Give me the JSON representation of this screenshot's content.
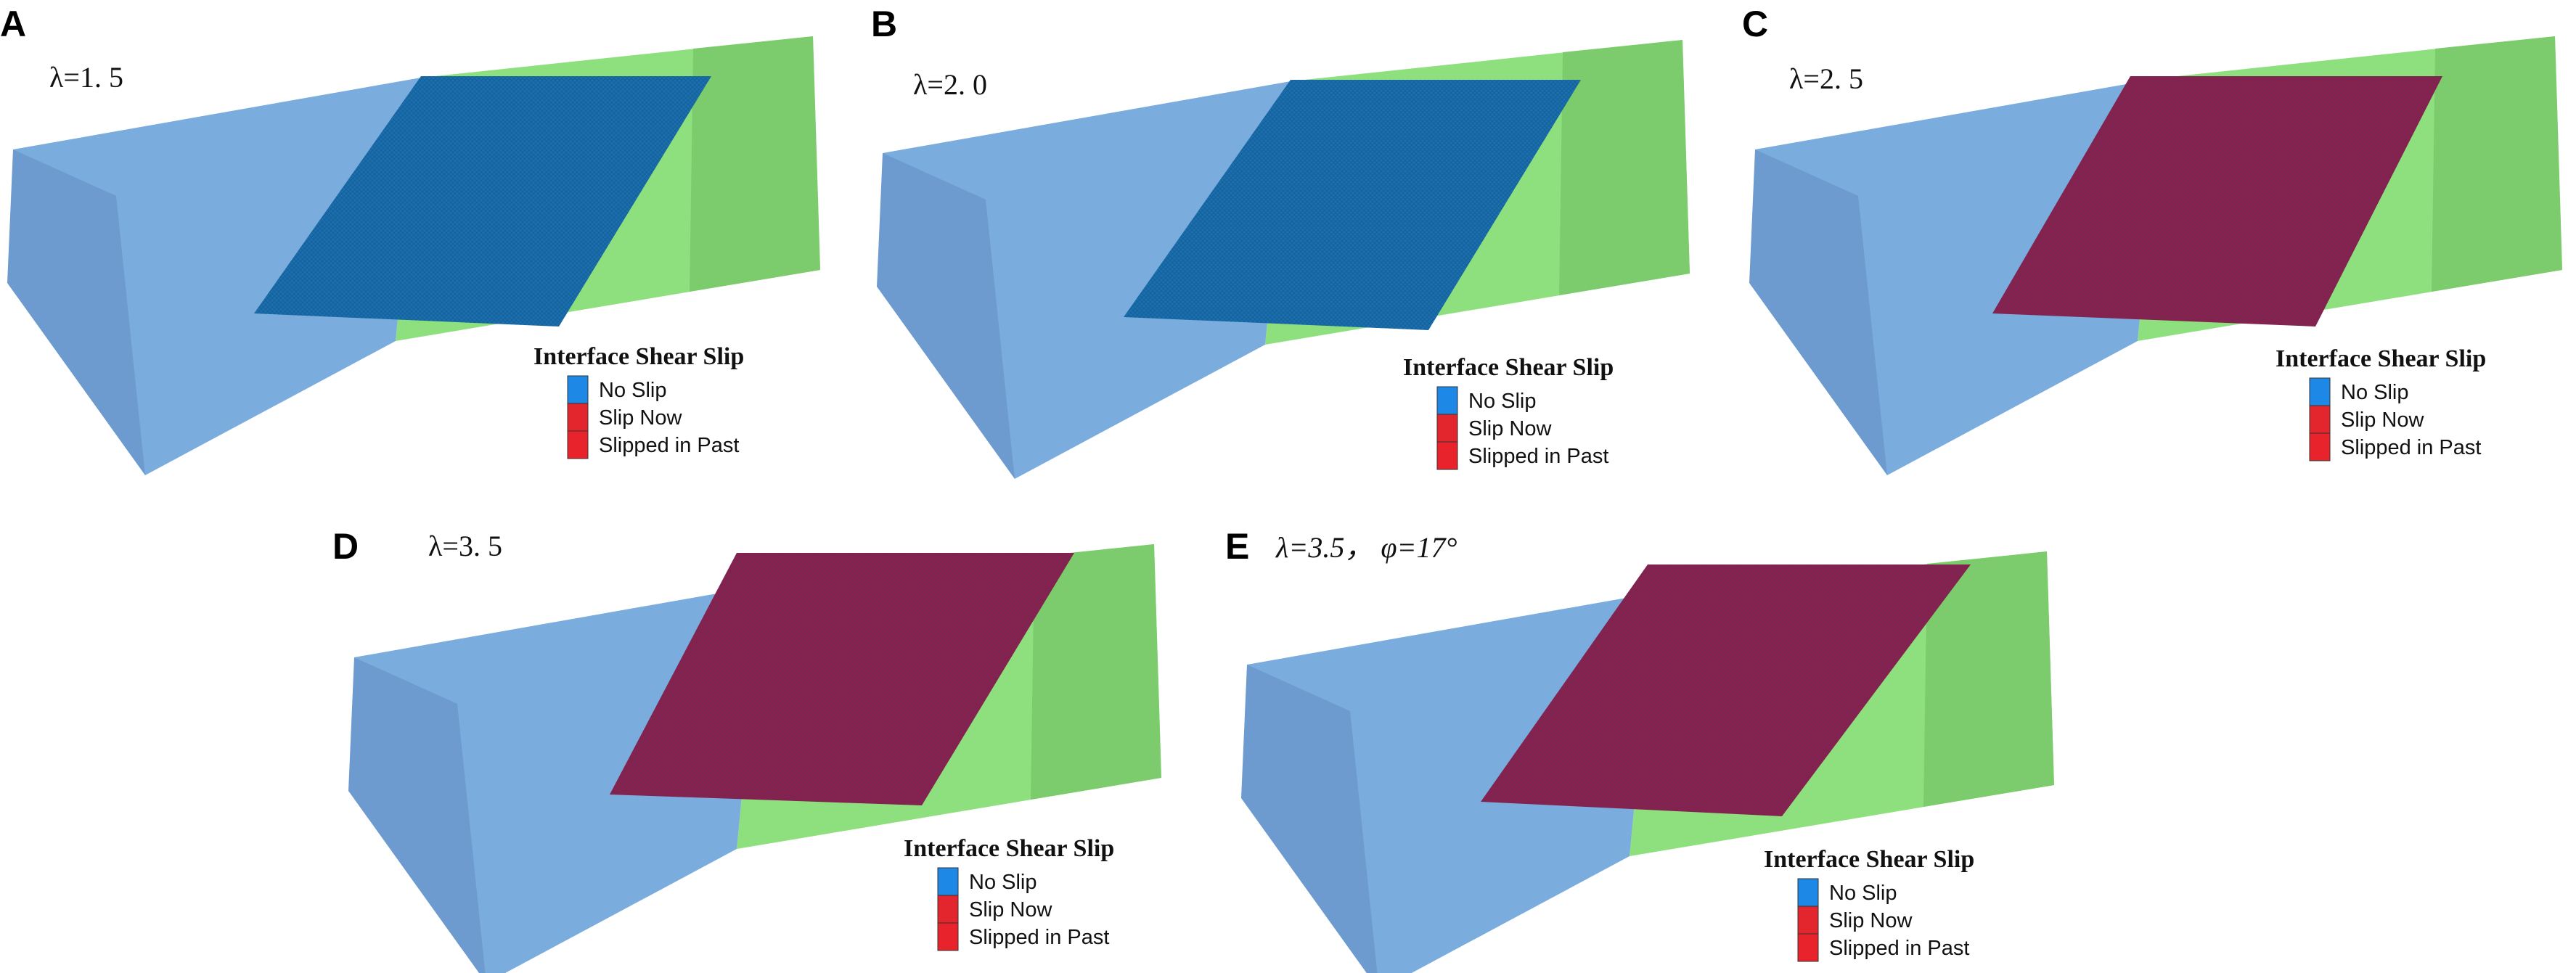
{
  "colors": {
    "box_left": "#7aacdd",
    "box_end": "#6d9bd0",
    "box_right": "#8ee07f",
    "box_far": "#7ccc6e",
    "no_slip": "#1d88e6",
    "slip_now": "#e3262e",
    "slipped_in_past": "#e8232b",
    "surface_no_slip": "#1a6fae",
    "surface_slipped": "#8c1f48"
  },
  "panels": [
    {
      "id": "A",
      "label": "A",
      "param": "λ=1. 5",
      "surface_state": "No Slip",
      "legend": {
        "title": "Interface Shear Slip",
        "items": [
          "No Slip",
          "Slip Now",
          "Slipped in Past"
        ]
      }
    },
    {
      "id": "B",
      "label": "B",
      "param": "λ=2. 0",
      "surface_state": "No Slip",
      "legend": {
        "title": "Interface Shear Slip",
        "items": [
          "No Slip",
          "Slip Now",
          "Slipped in Past"
        ]
      }
    },
    {
      "id": "C",
      "label": "C",
      "param": "λ=2. 5",
      "surface_state": "Slipped in Past",
      "legend": {
        "title": "Interface Shear Slip",
        "items": [
          "No Slip",
          "Slip Now",
          "Slipped in Past"
        ]
      }
    },
    {
      "id": "D",
      "label": "D",
      "param": "λ=3. 5",
      "surface_state": "Slipped in Past",
      "legend": {
        "title": "Interface Shear Slip",
        "items": [
          "No Slip",
          "Slip Now",
          "Slipped in Past"
        ]
      }
    },
    {
      "id": "E",
      "label": "E",
      "param_lambda": "λ=3.5，",
      "param_phi": "φ=17°",
      "surface_state": "Slipped in Past",
      "legend": {
        "title": "Interface Shear Slip",
        "items": [
          "No Slip",
          "Slip Now",
          "Slipped in Past"
        ]
      }
    }
  ]
}
